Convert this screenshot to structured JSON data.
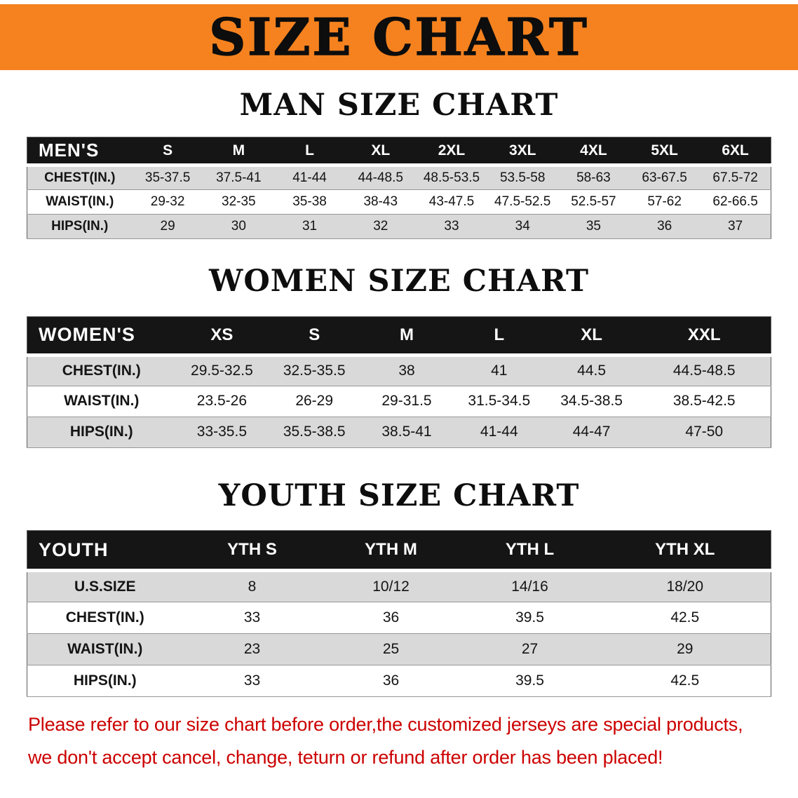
{
  "banner": {
    "title": "SIZE CHART"
  },
  "colors": {
    "banner_bg": "#F5821F",
    "header_bg": "#151515",
    "stripe_bg": "#D9D9D9",
    "note_red": "#CC0000"
  },
  "men": {
    "heading": "MAN SIZE CHART",
    "header": [
      "MEN'S",
      "S",
      "M",
      "L",
      "XL",
      "2XL",
      "3XL",
      "4XL",
      "5XL",
      "6XL"
    ],
    "rows": [
      [
        "CHEST(IN.)",
        "35-37.5",
        "37.5-41",
        "41-44",
        "44-48.5",
        "48.5-53.5",
        "53.5-58",
        "58-63",
        "63-67.5",
        "67.5-72"
      ],
      [
        "WAIST(IN.)",
        "29-32",
        "32-35",
        "35-38",
        "38-43",
        "43-47.5",
        "47.5-52.5",
        "52.5-57",
        "57-62",
        "62-66.5"
      ],
      [
        "HIPS(IN.)",
        "29",
        "30",
        "31",
        "32",
        "33",
        "34",
        "35",
        "36",
        "37"
      ]
    ]
  },
  "women": {
    "heading": "WOMEN SIZE CHART",
    "header": [
      "WOMEN'S",
      "XS",
      "S",
      "M",
      "L",
      "XL",
      "XXL"
    ],
    "rows": [
      [
        "CHEST(IN.)",
        "29.5-32.5",
        "32.5-35.5",
        "38",
        "41",
        "44.5",
        "44.5-48.5"
      ],
      [
        "WAIST(IN.)",
        "23.5-26",
        "26-29",
        "29-31.5",
        "31.5-34.5",
        "34.5-38.5",
        "38.5-42.5"
      ],
      [
        "HIPS(IN.)",
        "33-35.5",
        "35.5-38.5",
        "38.5-41",
        "41-44",
        "44-47",
        "47-50"
      ]
    ]
  },
  "youth": {
    "heading": "YOUTH SIZE CHART",
    "header": [
      "YOUTH",
      "YTH S",
      "YTH M",
      "YTH L",
      "YTH XL"
    ],
    "rows": [
      [
        "U.S.SIZE",
        "8",
        "10/12",
        "14/16",
        "18/20"
      ],
      [
        "CHEST(IN.)",
        "33",
        "36",
        "39.5",
        "42.5"
      ],
      [
        "WAIST(IN.)",
        "23",
        "25",
        "27",
        "29"
      ],
      [
        "HIPS(IN.)",
        "33",
        "36",
        "39.5",
        "42.5"
      ]
    ]
  },
  "note": {
    "line1": "Please refer to our size chart before order,the customized jerseys are special products,",
    "line2": "we don't accept cancel, change, teturn or refund after order has been placed!"
  }
}
